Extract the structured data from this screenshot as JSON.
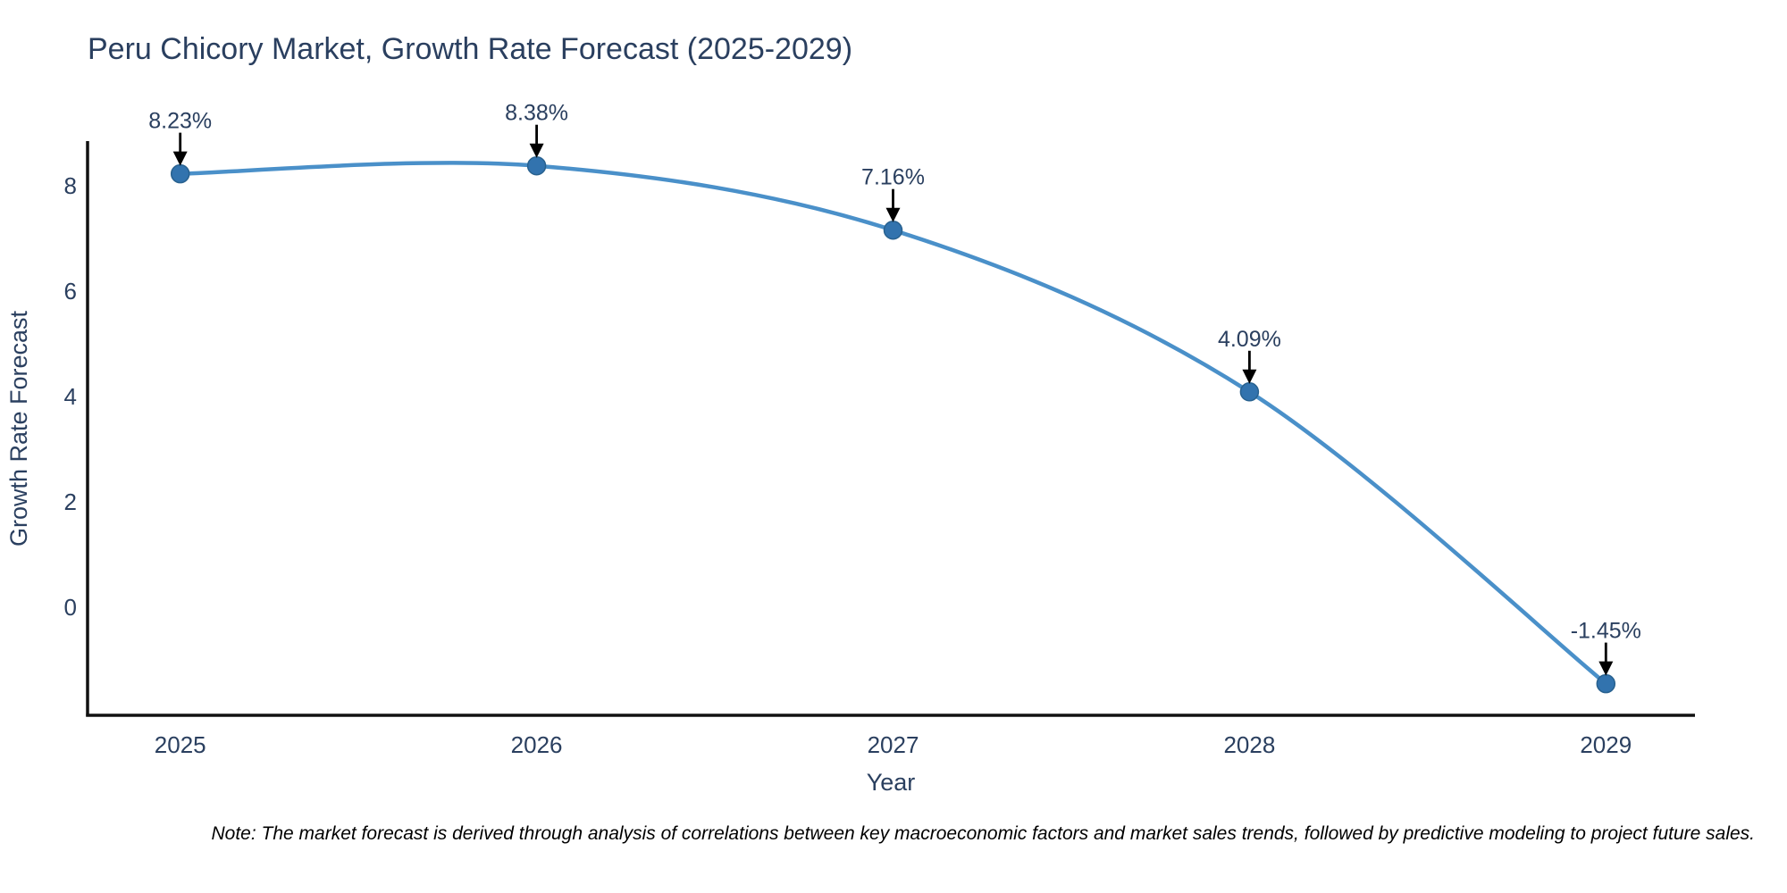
{
  "page": {
    "background": "#ffffff"
  },
  "chart_data": {
    "type": "line",
    "title": "Peru Chicory Market, Growth Rate Forecast (2025-2029)",
    "xlabel": "Year",
    "ylabel": "Growth Rate Forecast",
    "x": [
      2025,
      2026,
      2027,
      2028,
      2029
    ],
    "y": [
      8.23,
      8.38,
      7.16,
      4.09,
      -1.45
    ],
    "point_labels": [
      "8.23%",
      "8.38%",
      "7.16%",
      "4.09%",
      "-1.45%"
    ],
    "yticks": [
      0,
      2,
      4,
      6,
      8
    ],
    "xlim": [
      2024.74,
      2029.25
    ],
    "ylim": [
      -2.05,
      8.85
    ],
    "grid": false,
    "legend": false,
    "line_shape": "spline",
    "line_color": "#4a90c9",
    "marker_color": "#3273ae",
    "marker_edge_color": "#28618f",
    "axis_color": "#111111",
    "text_color": "#2a3f5f",
    "arrow_color": "#000000"
  },
  "note": "Note: The market forecast is derived through analysis of correlations between key macroeconomic factors and market sales trends, followed by predictive modeling to project future sales."
}
